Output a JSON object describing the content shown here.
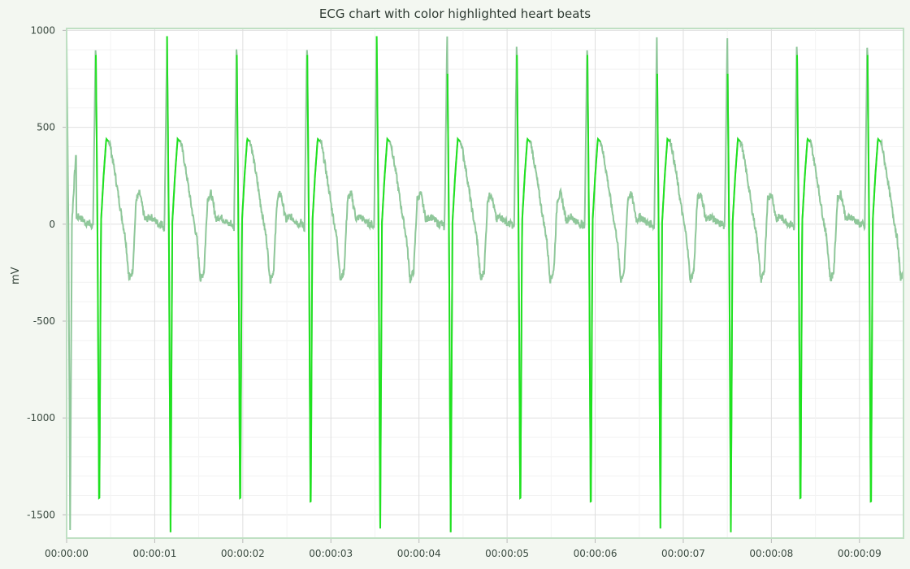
{
  "chart_data": {
    "type": "line",
    "title": "ECG chart with color highlighted heart beats",
    "ylabel": "mV",
    "xlabel": "",
    "ylim": [
      -1620,
      1010
    ],
    "xlim_seconds": [
      0,
      9.5
    ],
    "y_ticks": [
      "1000",
      "500",
      "0",
      "-500",
      "-1000",
      "-1500"
    ],
    "x_ticks": [
      "00:00:00",
      "00:00:01",
      "00:00:02",
      "00:00:03",
      "00:00:04",
      "00:00:05",
      "00:00:06",
      "00:00:07",
      "00:00:08",
      "00:00:09"
    ],
    "grid": true,
    "legend": "none",
    "colors": {
      "baseline": "#8fc79a",
      "heartbeat": "#1fe21f",
      "axis": "#bfe0c3",
      "grid": "#e4e4e4",
      "plot_bg": "#ffffff"
    },
    "series": [
      {
        "highlighted_beats": [
          {
            "start": "00:00:00.33",
            "end": "00:00:00.48",
            "peak": 970,
            "trough": -1570
          },
          {
            "start": "00:00:01.14",
            "end": "00:00:01.29",
            "peak": 970,
            "trough": -1590
          },
          {
            "start": "00:00:01.93",
            "end": "00:00:02.08",
            "peak": 970,
            "trough": -1570
          },
          {
            "start": "00:00:02.73",
            "end": "00:00:02.88",
            "peak": 970,
            "trough": -1590
          },
          {
            "start": "00:00:03.52",
            "end": "00:00:03.67",
            "peak": 970,
            "trough": -1570
          },
          {
            "start": "00:00:04.32",
            "end": "00:00:04.47",
            "peak": 970,
            "trough": -1590
          },
          {
            "start": "00:00:05.11",
            "end": "00:00:05.26",
            "peak": 970,
            "trough": -1570
          },
          {
            "start": "00:00:05.91",
            "end": "00:00:06.06",
            "peak": 970,
            "trough": -1590
          },
          {
            "start": "00:00:06.70",
            "end": "00:00:06.85",
            "peak": 970,
            "trough": -1570
          },
          {
            "start": "00:00:07.50",
            "end": "00:00:07.65",
            "peak": 970,
            "trough": -1590
          },
          {
            "start": "00:00:08.29",
            "end": "00:00:08.44",
            "peak": 970,
            "trough": -1570
          },
          {
            "start": "00:00:09.09",
            "end": "00:00:09.24",
            "peak": 970,
            "trough": -1590
          }
        ],
        "beat_waveform": {
          "t_offset_s": [
            0,
            0.04,
            0.07,
            0.09,
            0.11,
            0.13,
            0.16,
            0.19,
            0.23,
            0.29,
            0.35,
            0.41,
            0.45,
            0.49,
            0.53,
            0.57,
            0.63,
            0.69,
            0.79
          ],
          "mV": [
            10,
            -20,
            970,
            0,
            -1570,
            10,
            250,
            440,
            420,
            260,
            80,
            -80,
            -290,
            -240,
            130,
            160,
            20,
            40,
            0
          ]
        }
      }
    ]
  }
}
